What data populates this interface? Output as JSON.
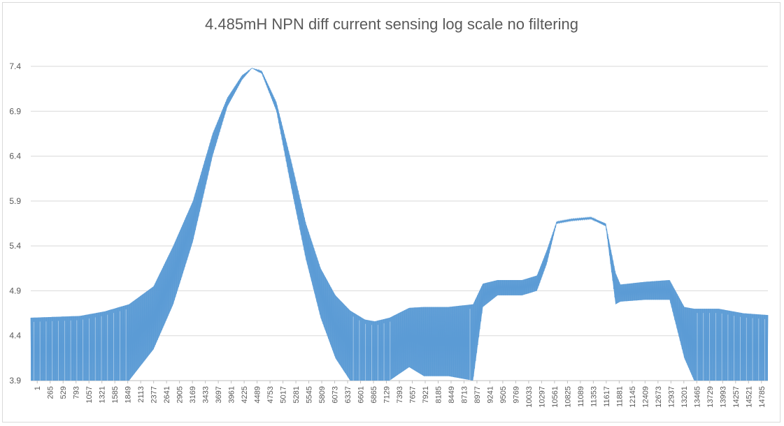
{
  "chart_data": {
    "type": "area",
    "title": "4.485mH NPN diff current sensing log scale no filtering",
    "xlabel": "",
    "ylabel": "",
    "ylim": [
      3.9,
      7.4
    ],
    "yticks": [
      "3.9",
      "4.4",
      "4.9",
      "5.4",
      "5.9",
      "6.4",
      "6.9",
      "7.4"
    ],
    "xlim": [
      1,
      15000
    ],
    "xticks": [
      "1",
      "265",
      "529",
      "793",
      "1057",
      "1321",
      "1585",
      "1849",
      "2113",
      "2377",
      "2641",
      "2905",
      "3169",
      "3433",
      "3697",
      "3961",
      "4225",
      "4489",
      "4753",
      "5017",
      "5281",
      "5545",
      "5809",
      "6073",
      "6337",
      "6601",
      "6865",
      "7129",
      "7393",
      "7657",
      "7921",
      "8185",
      "8449",
      "8713",
      "8977",
      "9241",
      "9505",
      "9769",
      "10033",
      "10297",
      "10561",
      "10825",
      "11089",
      "11353",
      "11617",
      "11881",
      "12145",
      "12409",
      "12673",
      "12937",
      "13201",
      "13465",
      "13729",
      "13993",
      "14257",
      "14521",
      "14785"
    ],
    "grid": "horizontal",
    "legend": "none",
    "series_color": "#5b9bd5",
    "envelope": {
      "x": [
        1,
        500,
        1000,
        1500,
        2000,
        2500,
        2900,
        3300,
        3700,
        4000,
        4300,
        4500,
        4700,
        5000,
        5300,
        5600,
        5900,
        6200,
        6500,
        6800,
        7000,
        7300,
        7700,
        8000,
        8500,
        9000,
        9200,
        9500,
        10000,
        10300,
        10500,
        10700,
        11000,
        11400,
        11700,
        11900,
        12000,
        12500,
        13000,
        13300,
        13500,
        14000,
        14500,
        15000
      ],
      "upper": [
        4.6,
        4.61,
        4.62,
        4.67,
        4.75,
        4.95,
        5.4,
        5.9,
        6.65,
        7.05,
        7.3,
        7.38,
        7.35,
        7.0,
        6.35,
        5.65,
        5.15,
        4.85,
        4.68,
        4.58,
        4.56,
        4.6,
        4.71,
        4.72,
        4.72,
        4.75,
        4.98,
        5.02,
        5.02,
        5.07,
        5.35,
        5.67,
        5.7,
        5.72,
        5.65,
        5.1,
        4.97,
        5.0,
        5.02,
        4.72,
        4.7,
        4.7,
        4.65,
        4.63
      ],
      "lower": [
        3.9,
        3.9,
        3.9,
        3.9,
        3.9,
        4.25,
        4.75,
        5.45,
        6.4,
        6.95,
        7.25,
        7.38,
        7.32,
        6.9,
        6.05,
        5.25,
        4.6,
        4.15,
        3.9,
        3.9,
        3.9,
        3.9,
        4.05,
        3.95,
        3.95,
        3.9,
        4.72,
        4.85,
        4.85,
        4.9,
        5.2,
        5.65,
        5.68,
        5.7,
        5.62,
        4.75,
        4.78,
        4.8,
        4.8,
        4.15,
        3.9,
        3.9,
        3.9,
        3.9
      ]
    }
  }
}
